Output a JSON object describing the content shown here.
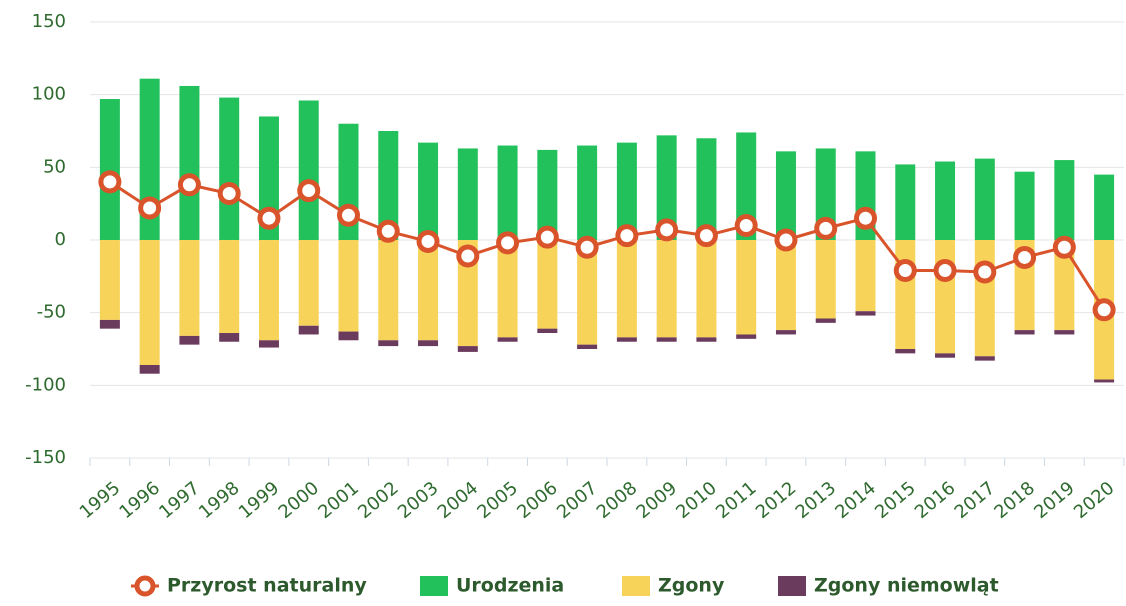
{
  "chart_data": {
    "type": "bar",
    "categories": [
      "1995",
      "1996",
      "1997",
      "1998",
      "1999",
      "2000",
      "2001",
      "2002",
      "2003",
      "2004",
      "2005",
      "2006",
      "2007",
      "2008",
      "2009",
      "2010",
      "2011",
      "2012",
      "2013",
      "2014",
      "2015",
      "2016",
      "2017",
      "2018",
      "2019",
      "2020"
    ],
    "series": [
      {
        "name": "Przyrost naturalny",
        "type": "line",
        "color": "#d9542b",
        "values": [
          40,
          22,
          38,
          32,
          15,
          34,
          17,
          6,
          -1,
          -11,
          -2,
          2,
          -5,
          3,
          7,
          3,
          10,
          0,
          8,
          15,
          -21,
          -21,
          -22,
          -12,
          -5,
          -48
        ]
      },
      {
        "name": "Urodzenia",
        "color": "#22c15c",
        "values": [
          97,
          111,
          106,
          98,
          85,
          96,
          80,
          75,
          67,
          63,
          65,
          62,
          65,
          67,
          72,
          70,
          74,
          61,
          63,
          61,
          52,
          54,
          56,
          47,
          55,
          45
        ]
      },
      {
        "name": "Zgony",
        "color": "#f8d35a",
        "values": [
          -55,
          -86,
          -66,
          -64,
          -69,
          -59,
          -63,
          -69,
          -69,
          -73,
          -67,
          -61,
          -72,
          -67,
          -67,
          -67,
          -65,
          -62,
          -54,
          -49,
          -75,
          -78,
          -80,
          -62,
          -62,
          -96
        ]
      },
      {
        "name": "Zgony niemowląt",
        "color": "#6b3b5e",
        "values": [
          -6,
          -6,
          -6,
          -6,
          -5,
          -6,
          -6,
          -4,
          -4,
          -4,
          -3,
          -3,
          -3,
          -3,
          -3,
          -3,
          -3,
          -3,
          -3,
          -3,
          -3,
          -3,
          -3,
          -3,
          -3,
          -2
        ]
      }
    ],
    "ylim": [
      -150,
      150
    ],
    "yticks": [
      -150,
      -100,
      -50,
      0,
      50,
      100,
      150
    ],
    "grid": true
  }
}
